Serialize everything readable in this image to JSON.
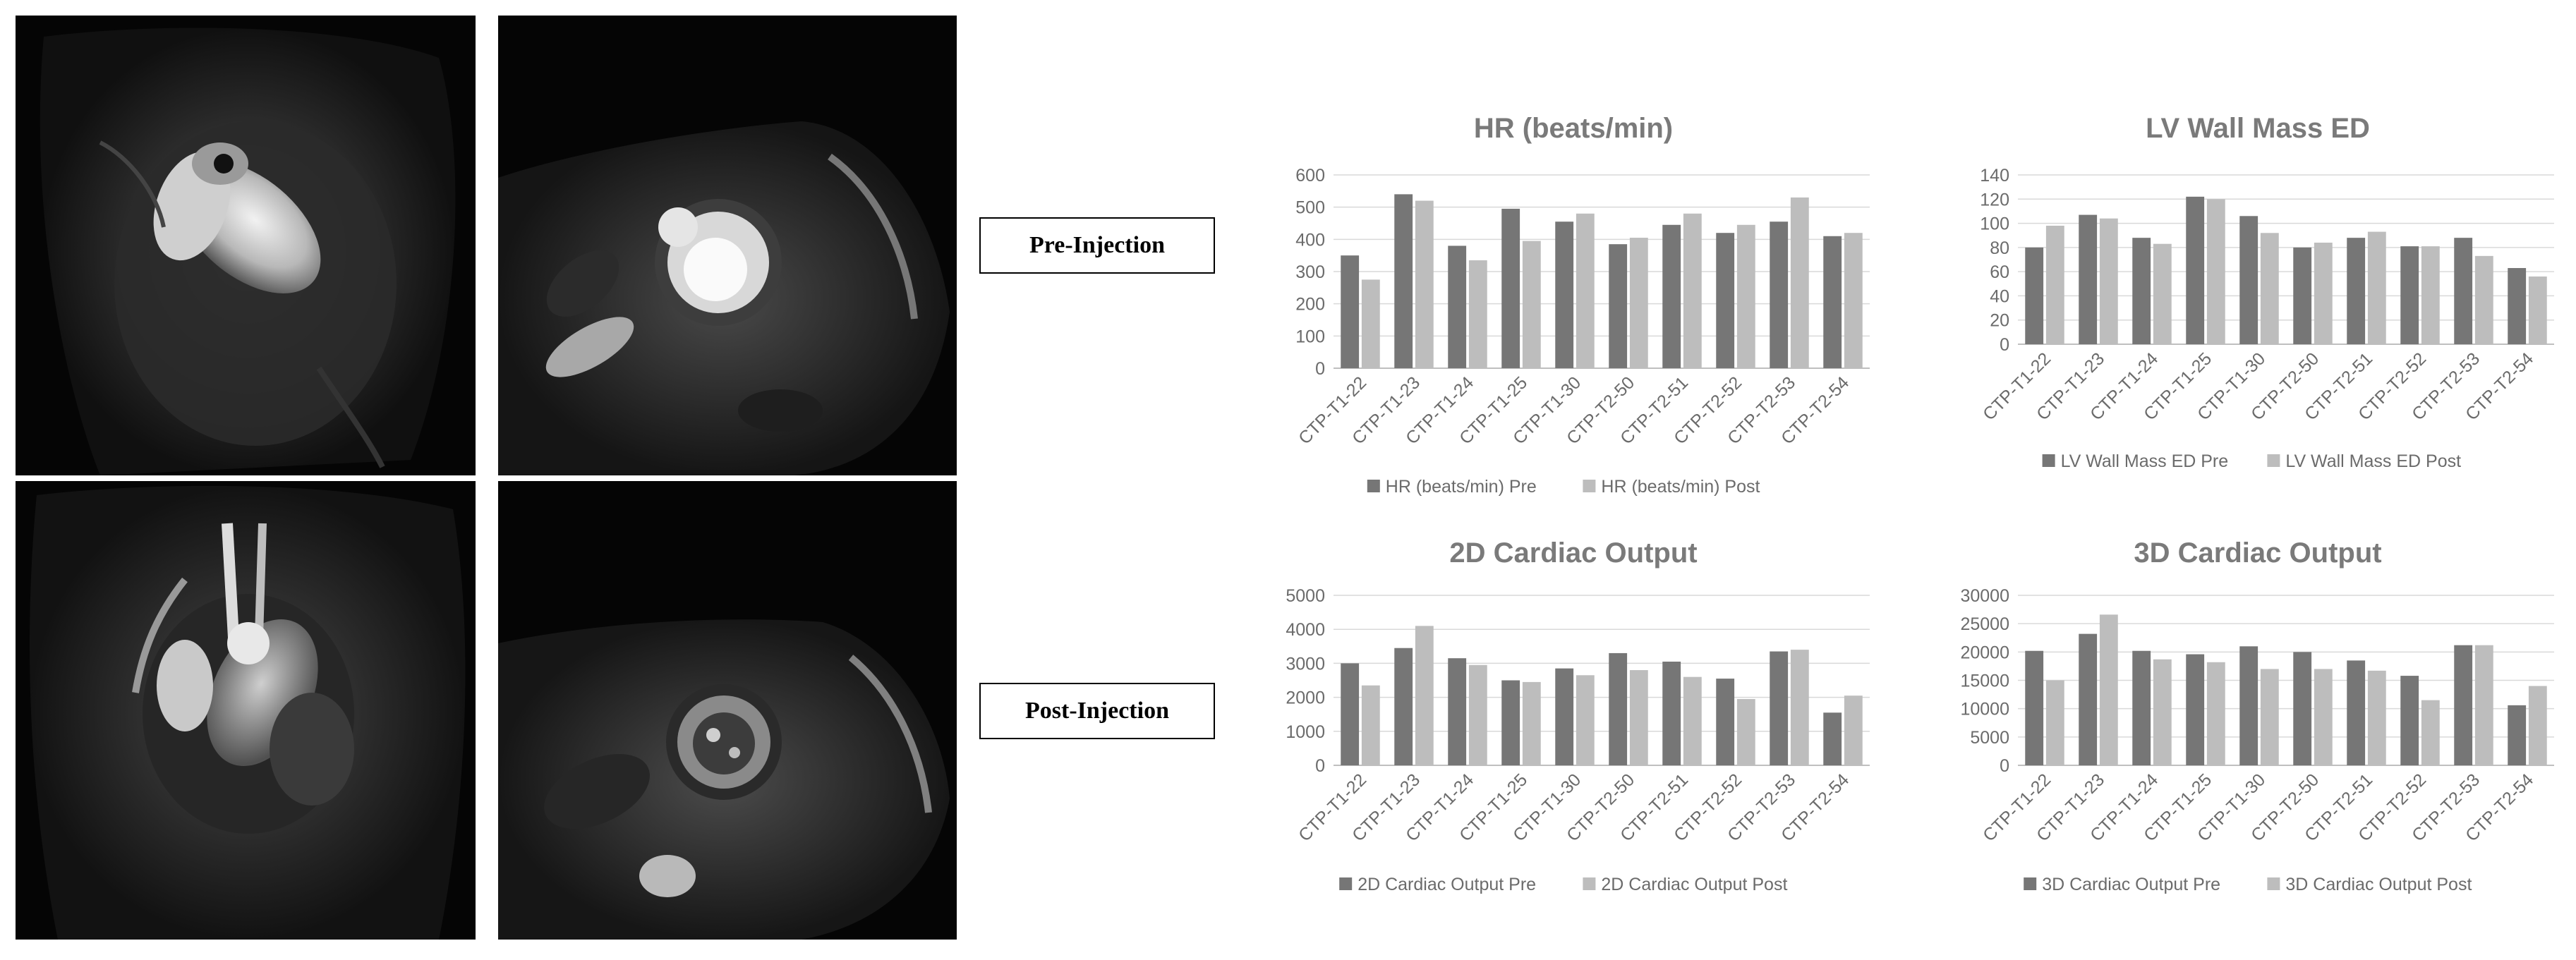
{
  "labels": {
    "pre": "Pre-Injection",
    "post": "Post-Injection"
  },
  "colors": {
    "pre": "#767676",
    "post": "#bdbdbd"
  },
  "chart_data": [
    {
      "type": "bar",
      "title": "HR (beats/min)",
      "categories": [
        "CTP-T1-22",
        "CTP-T1-23",
        "CTP-T1-24",
        "CTP-T1-25",
        "CTP-T1-30",
        "CTP-T2-50",
        "CTP-T2-51",
        "CTP-T2-52",
        "CTP-T2-53",
        "CTP-T2-54"
      ],
      "series": [
        {
          "name": "HR (beats/min) Pre",
          "values": [
            350,
            540,
            380,
            495,
            455,
            385,
            445,
            420,
            455,
            410
          ]
        },
        {
          "name": "HR (beats/min) Post",
          "values": [
            275,
            520,
            335,
            395,
            480,
            405,
            480,
            445,
            530,
            420
          ]
        }
      ],
      "ylim": [
        0,
        600
      ],
      "yticks": [
        "0",
        "100",
        "200",
        "300",
        "400",
        "500",
        "600"
      ],
      "legend": "bottom",
      "grid": true
    },
    {
      "type": "bar",
      "title": "LV Wall Mass ED",
      "categories": [
        "CTP-T1-22",
        "CTP-T1-23",
        "CTP-T1-24",
        "CTP-T1-25",
        "CTP-T1-30",
        "CTP-T2-50",
        "CTP-T2-51",
        "CTP-T2-52",
        "CTP-T2-53",
        "CTP-T2-54"
      ],
      "series": [
        {
          "name": "LV Wall Mass ED Pre",
          "values": [
            80,
            107,
            88,
            122,
            106,
            80,
            88,
            81,
            88,
            63
          ]
        },
        {
          "name": "LV Wall Mass ED Post",
          "values": [
            98,
            104,
            83,
            120,
            92,
            84,
            93,
            81,
            73,
            56
          ]
        }
      ],
      "ylim": [
        0,
        140
      ],
      "yticks": [
        "0",
        "20",
        "40",
        "60",
        "80",
        "100",
        "120",
        "140"
      ],
      "legend": "bottom",
      "grid": true
    },
    {
      "type": "bar",
      "title": "2D Cardiac Output",
      "categories": [
        "CTP-T1-22",
        "CTP-T1-23",
        "CTP-T1-24",
        "CTP-T1-25",
        "CTP-T1-30",
        "CTP-T2-50",
        "CTP-T2-51",
        "CTP-T2-52",
        "CTP-T2-53",
        "CTP-T2-54"
      ],
      "series": [
        {
          "name": "2D Cardiac Output Pre",
          "values": [
            3000,
            3450,
            3150,
            2500,
            2850,
            3300,
            3050,
            2550,
            3350,
            1550
          ]
        },
        {
          "name": "2D Cardiac Output Post",
          "values": [
            2350,
            4100,
            2950,
            2450,
            2650,
            2800,
            2600,
            1950,
            3400,
            2050
          ]
        }
      ],
      "ylim": [
        0,
        5000
      ],
      "yticks": [
        "0",
        "1000",
        "2000",
        "3000",
        "4000",
        "5000"
      ],
      "legend": "bottom",
      "grid": true
    },
    {
      "type": "bar",
      "title": "3D Cardiac Output",
      "categories": [
        "CTP-T1-22",
        "CTP-T1-23",
        "CTP-T1-24",
        "CTP-T1-25",
        "CTP-T1-30",
        "CTP-T2-50",
        "CTP-T2-51",
        "CTP-T2-52",
        "CTP-T2-53",
        "CTP-T2-54"
      ],
      "series": [
        {
          "name": "3D Cardiac Output Pre",
          "values": [
            20200,
            23200,
            20200,
            19600,
            21000,
            20000,
            18500,
            15800,
            21200,
            10600
          ]
        },
        {
          "name": "3D Cardiac Output Post",
          "values": [
            15000,
            26600,
            18700,
            18200,
            17000,
            17000,
            16700,
            11500,
            21200,
            14000
          ]
        }
      ],
      "ylim": [
        0,
        30000
      ],
      "yticks": [
        "0",
        "5000",
        "10000",
        "15000",
        "20000",
        "25000",
        "30000"
      ],
      "legend": "bottom",
      "grid": true
    }
  ]
}
